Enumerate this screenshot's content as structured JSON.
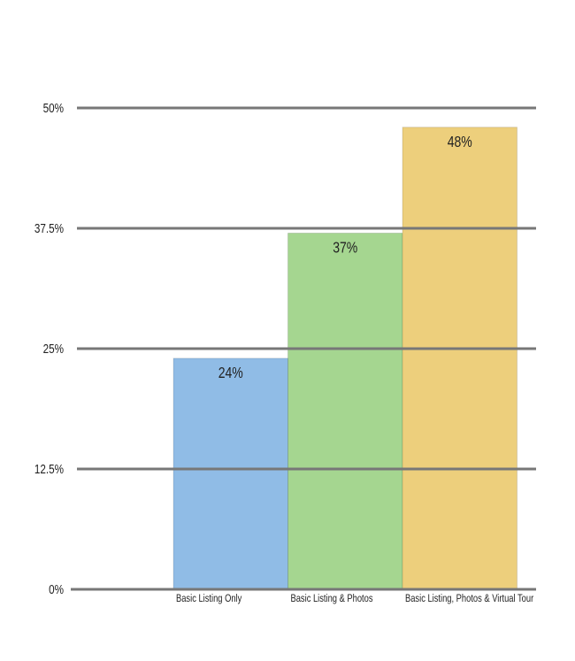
{
  "chart_data": {
    "type": "bar",
    "categories": [
      "Basic Listing Only",
      "Basic Listing & Photos",
      "Basic Listing, Photos & Virtual Tour"
    ],
    "values": [
      24,
      37,
      48
    ],
    "value_labels": [
      "24%",
      "37%",
      "48%"
    ],
    "colors": [
      "#90bce6",
      "#a5d690",
      "#edcf7c"
    ],
    "ylim": [
      0,
      50
    ],
    "yticks": [
      {
        "value": 0,
        "label": "0%"
      },
      {
        "value": 12.5,
        "label": "12.5%"
      },
      {
        "value": 25,
        "label": "25%"
      },
      {
        "value": 37.5,
        "label": "37.5%"
      },
      {
        "value": 50,
        "label": "50%"
      }
    ],
    "grid": true
  }
}
